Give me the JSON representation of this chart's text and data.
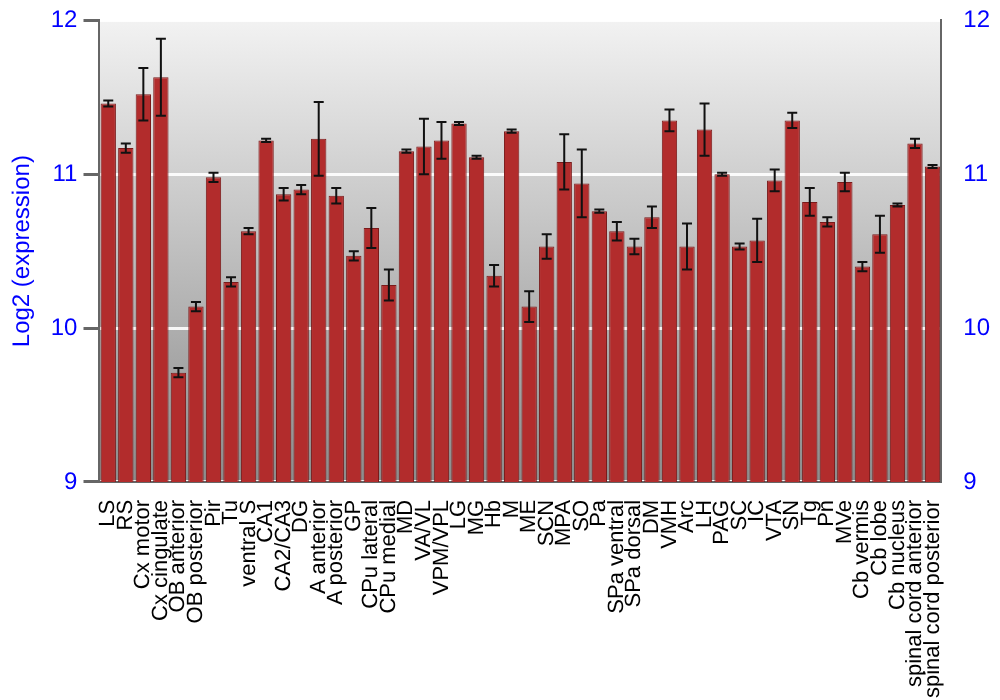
{
  "chart_data": {
    "type": "bar",
    "ylabel": "Log2 (expression)",
    "categories": [
      "LS",
      "RS",
      "Cx motor",
      "Cx cingulate",
      "OB anterior",
      "OB posterior",
      "Pir",
      "Tu",
      "ventral S",
      "CA1",
      "CA2/CA3",
      "DG",
      "A anterior",
      "A posterior",
      "GP",
      "CPu lateral",
      "CPu medial",
      "MD",
      "VA/VL",
      "VPM/VPL",
      "LG",
      "MG",
      "Hb",
      "M",
      "ME",
      "SCN",
      "MPA",
      "SO",
      "Pa",
      "SPa ventral",
      "SPa dorsal",
      "DM",
      "VMH",
      "Arc",
      "LH",
      "PAG",
      "SC",
      "IC",
      "VTA",
      "SN",
      "Tg",
      "Pn",
      "MVe",
      "Cb vermis",
      "Cb lobe",
      "Cb nucleus",
      "spinal cord anterior",
      "spinal cord posterior"
    ],
    "values": [
      11.46,
      11.17,
      11.52,
      11.63,
      9.71,
      10.14,
      10.98,
      10.3,
      10.63,
      11.22,
      10.87,
      10.9,
      11.23,
      10.86,
      10.47,
      10.65,
      10.28,
      11.15,
      11.18,
      11.22,
      11.33,
      11.11,
      10.34,
      11.28,
      10.14,
      10.53,
      11.08,
      10.94,
      10.76,
      10.63,
      10.53,
      10.72,
      11.35,
      10.53,
      11.29,
      11.0,
      10.53,
      10.57,
      10.96,
      11.35,
      10.82,
      10.69,
      10.95,
      10.4,
      10.61,
      10.8,
      11.2,
      11.05
    ],
    "errors": [
      0.02,
      0.03,
      0.17,
      0.25,
      0.03,
      0.03,
      0.03,
      0.03,
      0.02,
      0.01,
      0.04,
      0.03,
      0.24,
      0.05,
      0.03,
      0.13,
      0.1,
      0.01,
      0.18,
      0.12,
      0.01,
      0.01,
      0.07,
      0.01,
      0.1,
      0.08,
      0.18,
      0.22,
      0.01,
      0.06,
      0.05,
      0.07,
      0.07,
      0.15,
      0.17,
      0.01,
      0.02,
      0.14,
      0.07,
      0.05,
      0.09,
      0.03,
      0.06,
      0.03,
      0.12,
      0.01,
      0.03,
      0.01
    ],
    "color": "#b22c2c",
    "ylim": [
      9,
      12
    ],
    "yticks": [
      9,
      10,
      11,
      12
    ],
    "y2lim": [
      9,
      12
    ],
    "y2ticks": [
      9,
      10,
      11,
      12
    ],
    "grid": "y"
  }
}
